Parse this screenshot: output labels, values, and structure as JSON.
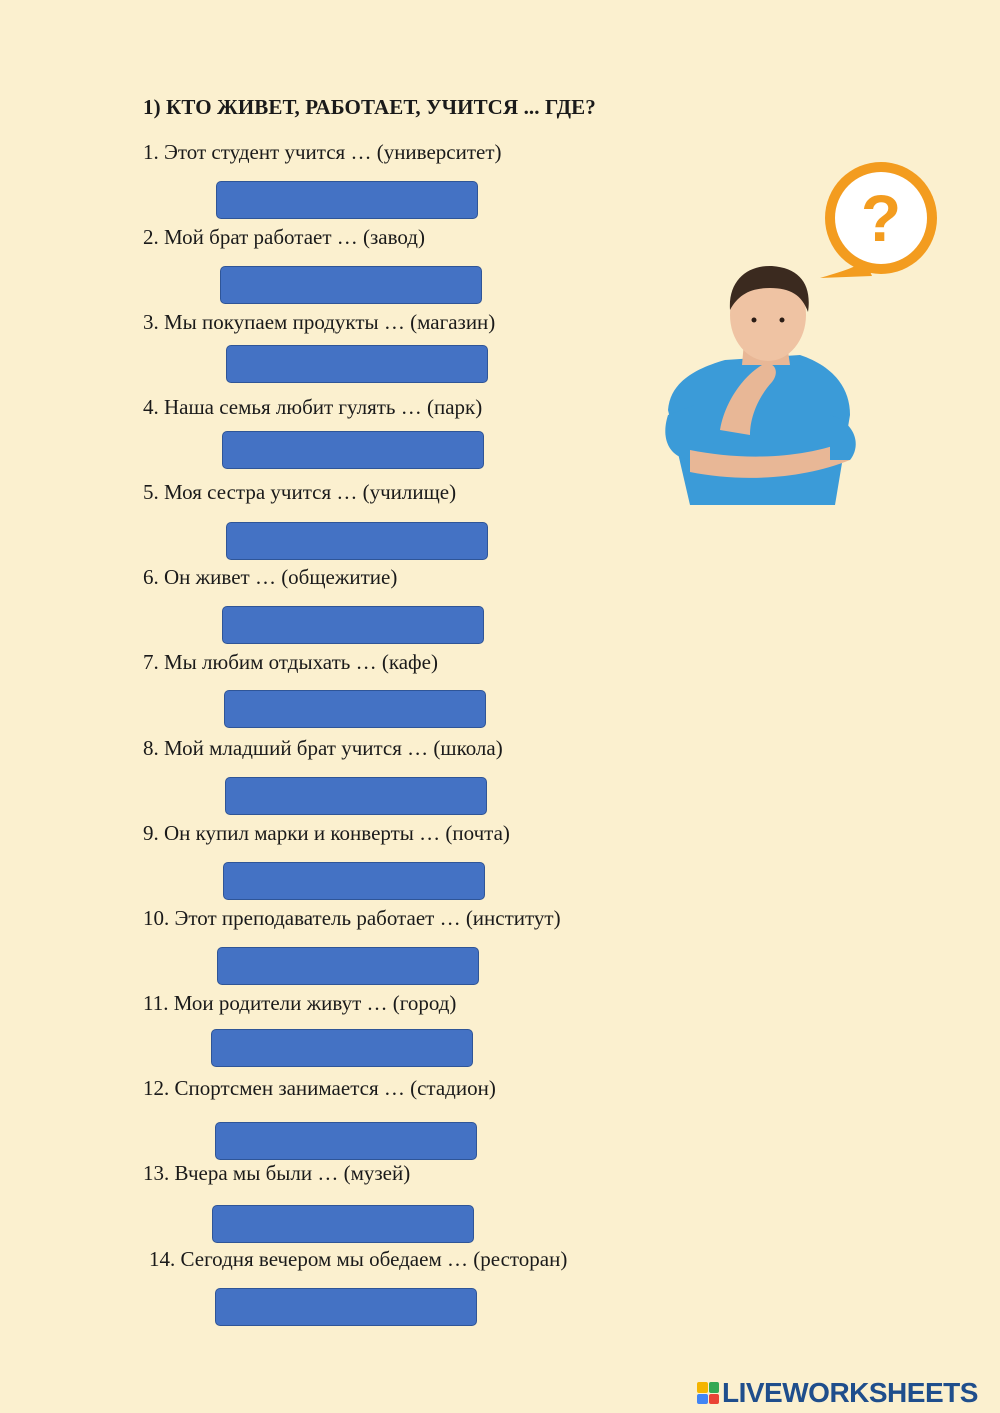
{
  "worksheet": {
    "title": "1) КТО ЖИВЕТ, РАБОТАЕТ, УЧИТСЯ ... ГДЕ?",
    "questions": [
      "1. Этот студент учится … (университет)",
      "2. Мой брат работает … (завод)",
      "3. Мы покупаем продукты … (магазин)",
      "4. Наша семья любит гулять … (парк)",
      "5. Моя сестра учится … (училище)",
      "6. Он живет … (общежитие)",
      "7. Мы любим отдыхать … (кафе)",
      "8. Мой младший брат учится … (школа)",
      "9. Он купил марки и конверты … (почта)",
      "10. Этот преподаватель работает … (институт)",
      "11. Мои родители живут … (город)",
      "12. Спортсмен занимается … (стадион)",
      "13. Вчера мы были … (музей)",
      "14. Сегодня вечером мы обедаем … (ресторан)"
    ],
    "answers": [
      "",
      "",
      "",
      "",
      "",
      "",
      "",
      "",
      "",
      "",
      "",
      "",
      "",
      ""
    ]
  },
  "illustration": {
    "icon": "thinking-man-with-question-bubble",
    "bubble_glyph": "?"
  },
  "footer": {
    "logo_text": "LIVEWORKSHEETS"
  },
  "colors": {
    "background": "#fbf0cf",
    "answer_box": "#4472c4",
    "bubble": "#f39c1f",
    "logo": "#1f4e8c"
  }
}
